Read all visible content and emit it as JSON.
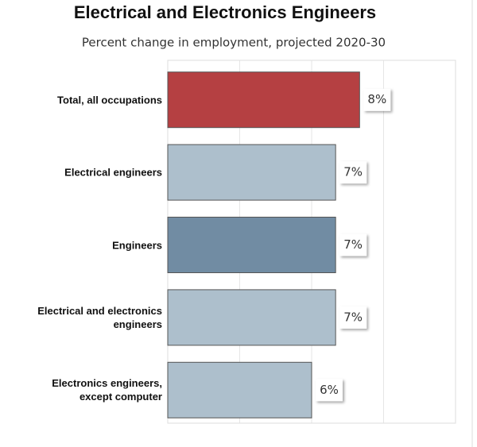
{
  "chart_data": {
    "type": "bar",
    "orientation": "horizontal",
    "title": "Electrical and Electronics Engineers",
    "subtitle": "Percent change in employment, projected 2020-30",
    "categories": [
      "Total, all occupations",
      "Electrical engineers",
      "Engineers",
      "Electrical and electronics\nengineers",
      "Electronics engineers,\nexcept computer"
    ],
    "values": [
      8,
      7,
      7,
      7,
      6
    ],
    "value_labels": [
      "8%",
      "7%",
      "7%",
      "7%",
      "6%"
    ],
    "colors": [
      "#b54042",
      "#adbfcc",
      "#718ca3",
      "#adbfcc",
      "#adbfcc"
    ],
    "xlim": [
      0,
      12
    ],
    "xticks": [
      0,
      3,
      6,
      9,
      12
    ],
    "grid": true
  }
}
